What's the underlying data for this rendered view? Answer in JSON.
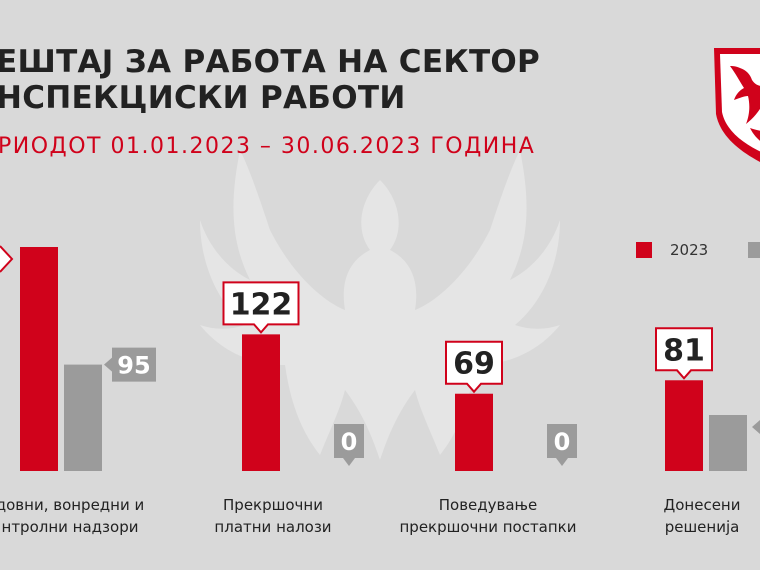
{
  "title_line1": "ЕШТАЈ ЗА РАБОТА НА СЕКТОР",
  "title_line2": "НСПЕКЦИСКИ РАБОТИ",
  "subtitle": "РИОДОТ 01.01.2023 – 30.06.2023 ГОДИНА",
  "colors": {
    "red": "#d0021b",
    "gray": "#9b9b9b",
    "background": "#d9d9d9"
  },
  "legend": [
    "2023"
  ],
  "chart_data": {
    "type": "bar",
    "categories": [
      [
        "довни, вонредни и",
        "нтролни надзори"
      ],
      [
        "Прекршочни",
        "платни налози"
      ],
      [
        "Поведување",
        "прекршочни постапки"
      ],
      [
        "Донесени",
        "решенија"
      ]
    ],
    "series": [
      {
        "name": "2023",
        "values": [
          200,
          122,
          69,
          81
        ],
        "labels": [
          "",
          "122",
          "69",
          "81"
        ]
      },
      {
        "name": "",
        "values": [
          95,
          0,
          0,
          50
        ],
        "labels": [
          "95",
          "0",
          "0",
          ""
        ]
      }
    ],
    "title": "ЕШТАЈ ЗА РАБОТА НА СЕКТОР НСПЕКЦИСКИ РАБОТИ",
    "subtitle": "РИОДОТ 01.01.2023 – 30.06.2023 ГОДИНА",
    "ylim": [
      0,
      200
    ],
    "grid": false,
    "legend_position": "top-right"
  },
  "icons": {
    "logo": "eagle-shield-logo",
    "watermark": "eagle-watermark"
  }
}
